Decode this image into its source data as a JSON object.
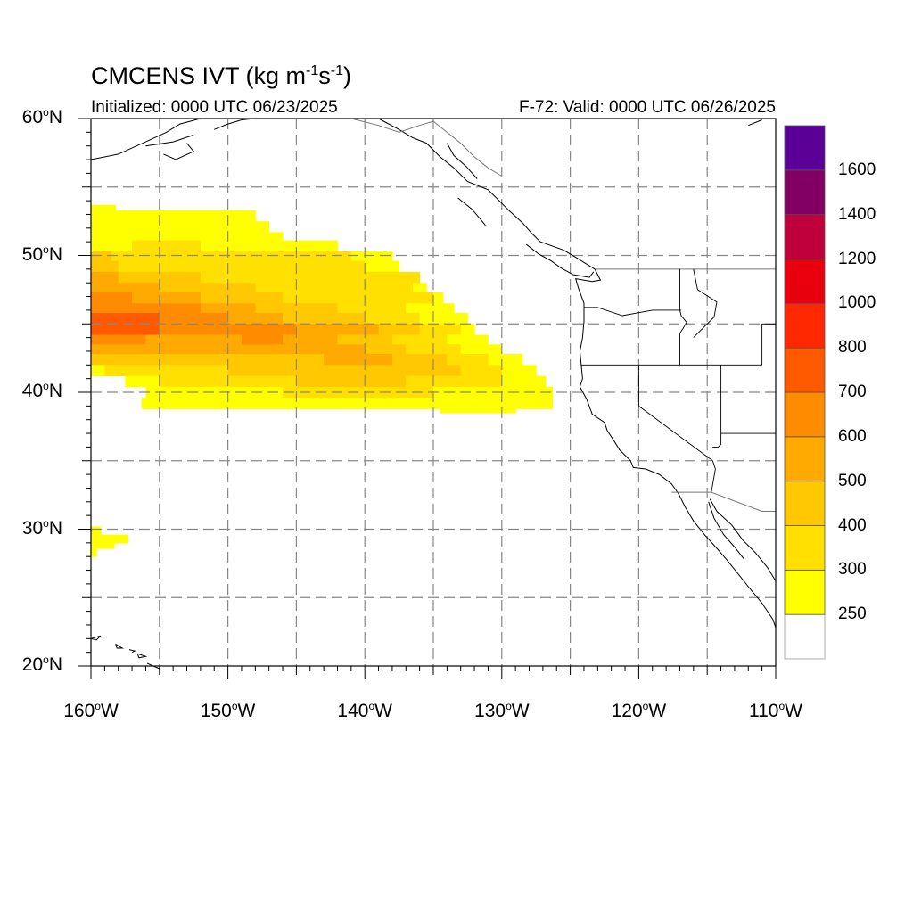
{
  "title": {
    "main": "CMCENS IVT (kg m",
    "sup1": "-1",
    "mid": "s",
    "sup2": "-1",
    "end": ")"
  },
  "subtitle_left": "Initialized: 0000 UTC 06/23/2025",
  "subtitle_right": "F-72: Valid: 0000 UTC 06/26/2025",
  "latitude_labels": [
    {
      "deg": "60",
      "hemi": "N",
      "value": 60
    },
    {
      "deg": "50",
      "hemi": "N",
      "value": 50
    },
    {
      "deg": "40",
      "hemi": "N",
      "value": 40
    },
    {
      "deg": "30",
      "hemi": "N",
      "value": 30
    },
    {
      "deg": "20",
      "hemi": "N",
      "value": 20
    }
  ],
  "longitude_labels": [
    {
      "deg": "160",
      "hemi": "W",
      "value": -160
    },
    {
      "deg": "150",
      "hemi": "W",
      "value": -150
    },
    {
      "deg": "140",
      "hemi": "W",
      "value": -140
    },
    {
      "deg": "130",
      "hemi": "W",
      "value": -130
    },
    {
      "deg": "120",
      "hemi": "W",
      "value": -120
    },
    {
      "deg": "110",
      "hemi": "W",
      "value": -110
    }
  ],
  "map_extent": {
    "lon_min": -160,
    "lon_max": -110,
    "lat_min": 20,
    "lat_max": 60
  },
  "colorbar": {
    "labels": [
      "250",
      "300",
      "400",
      "500",
      "600",
      "700",
      "800",
      "1000",
      "1200",
      "1400",
      "1600"
    ],
    "colors": [
      "#ffffff",
      "#ffff00",
      "#ffe000",
      "#ffc800",
      "#ffaa00",
      "#ff8c00",
      "#ff5a00",
      "#ff2800",
      "#e8000f",
      "#c0003c",
      "#820064",
      "#5a0096"
    ]
  },
  "ivt_field": {
    "bands": [
      {
        "level": 1,
        "color": "#ffff00"
      },
      {
        "level": 2,
        "color": "#ffe000"
      },
      {
        "level": 3,
        "color": "#ffc800"
      },
      {
        "level": 4,
        "color": "#ffaa00"
      },
      {
        "level": 5,
        "color": "#ff8c00"
      },
      {
        "level": 6,
        "color": "#ff5a00"
      }
    ]
  }
}
